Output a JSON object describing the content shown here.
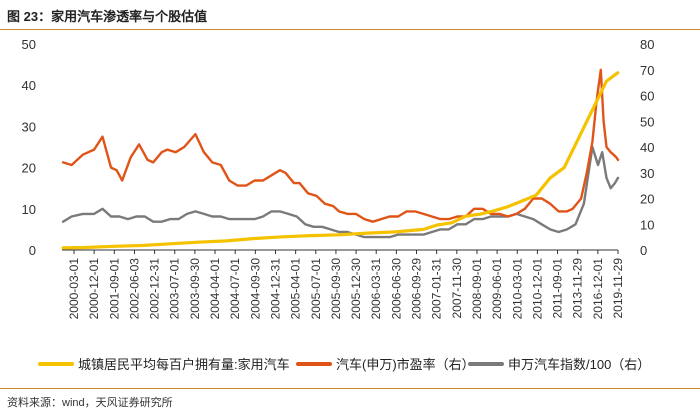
{
  "header": {
    "title": "图 23：家用汽车渗透率与个股估值"
  },
  "source": {
    "text": "资料来源：wind，天风证券研究所"
  },
  "colors": {
    "series1": "#f5c200",
    "series2": "#e05418",
    "series3": "#7a7a7a",
    "axis": "#333333"
  },
  "chart_data": {
    "type": "line",
    "left_axis": {
      "range": [
        0,
        50
      ],
      "ticks": [
        0,
        10,
        20,
        30,
        40,
        50
      ]
    },
    "right_axis": {
      "range": [
        0,
        80
      ],
      "ticks": [
        0,
        10,
        20,
        30,
        40,
        50,
        60,
        70,
        80
      ]
    },
    "x_range": [
      2000.16,
      2019.91
    ],
    "x_ticks": [
      "2000-03-01",
      "2000-12-01",
      "2001-09-01",
      "2002-06-03",
      "2002-12-31",
      "2003-07-01",
      "2003-09-30",
      "2004-04-01",
      "2004-07-01",
      "2004-09-30",
      "2004-12-31",
      "2005-04-01",
      "2005-07-01",
      "2005-09-30",
      "2005-12-30",
      "2006-03-31",
      "2006-06-30",
      "2006-09-29",
      "2007-01-31",
      "2007-11-30",
      "2008-09-01",
      "2009-06-01",
      "2010-03-01",
      "2010-12-01",
      "2011-09-01",
      "2013-11-29",
      "2016-12-01",
      "2019-11-29"
    ],
    "series": [
      {
        "name": "城镇居民平均每百户拥有量:家用汽车",
        "axis": "left",
        "points": [
          [
            2000.2,
            0.5
          ],
          [
            2001.0,
            0.6
          ],
          [
            2002.0,
            0.9
          ],
          [
            2003.0,
            1.1
          ],
          [
            2004.0,
            1.5
          ],
          [
            2005.0,
            1.9
          ],
          [
            2006.0,
            2.2
          ],
          [
            2007.0,
            2.8
          ],
          [
            2008.0,
            3.2
          ],
          [
            2009.0,
            3.5
          ],
          [
            2010.0,
            3.7
          ],
          [
            2011.0,
            4.1
          ],
          [
            2012.0,
            4.4
          ],
          [
            2013.0,
            5.0
          ],
          [
            2013.5,
            6.1
          ],
          [
            2014.0,
            6.6
          ],
          [
            2014.5,
            8.2
          ],
          [
            2015.0,
            8.7
          ],
          [
            2015.5,
            9.5
          ],
          [
            2016.0,
            10.5
          ],
          [
            2016.5,
            11.9
          ],
          [
            2017.0,
            13.3
          ],
          [
            2017.5,
            17.5
          ],
          [
            2018.0,
            20.0
          ],
          [
            2018.5,
            27.0
          ],
          [
            2019.0,
            34.0
          ],
          [
            2019.5,
            41.0
          ],
          [
            2019.9,
            43.0
          ]
        ]
      },
      {
        "name": "汽车(申万)市盈率（右）",
        "axis": "right",
        "points": [
          [
            2000.2,
            34
          ],
          [
            2000.5,
            33
          ],
          [
            2000.9,
            37
          ],
          [
            2001.3,
            39
          ],
          [
            2001.6,
            44
          ],
          [
            2001.9,
            32
          ],
          [
            2002.1,
            31
          ],
          [
            2002.3,
            27
          ],
          [
            2002.6,
            36
          ],
          [
            2002.9,
            41
          ],
          [
            2003.2,
            35
          ],
          [
            2003.4,
            34
          ],
          [
            2003.7,
            38
          ],
          [
            2003.9,
            39
          ],
          [
            2004.2,
            38
          ],
          [
            2004.5,
            40
          ],
          [
            2004.9,
            45
          ],
          [
            2005.2,
            38
          ],
          [
            2005.5,
            34
          ],
          [
            2005.8,
            33
          ],
          [
            2006.1,
            27
          ],
          [
            2006.4,
            25
          ],
          [
            2006.7,
            25
          ],
          [
            2007.0,
            27
          ],
          [
            2007.3,
            27
          ],
          [
            2007.6,
            29
          ],
          [
            2007.9,
            31
          ],
          [
            2008.1,
            30
          ],
          [
            2008.4,
            26
          ],
          [
            2008.6,
            26
          ],
          [
            2008.9,
            22
          ],
          [
            2009.2,
            21
          ],
          [
            2009.5,
            18
          ],
          [
            2009.8,
            17
          ],
          [
            2010.0,
            15
          ],
          [
            2010.3,
            14
          ],
          [
            2010.6,
            14
          ],
          [
            2010.9,
            12
          ],
          [
            2011.2,
            11
          ],
          [
            2011.5,
            12
          ],
          [
            2011.8,
            13
          ],
          [
            2012.1,
            13
          ],
          [
            2012.4,
            15
          ],
          [
            2012.7,
            15
          ],
          [
            2013.0,
            14
          ],
          [
            2013.3,
            13
          ],
          [
            2013.6,
            12
          ],
          [
            2013.9,
            12
          ],
          [
            2014.2,
            13
          ],
          [
            2014.5,
            13
          ],
          [
            2014.8,
            16
          ],
          [
            2015.1,
            16
          ],
          [
            2015.4,
            14
          ],
          [
            2015.7,
            14
          ],
          [
            2016.0,
            13
          ],
          [
            2016.3,
            14
          ],
          [
            2016.6,
            16
          ],
          [
            2016.9,
            20
          ],
          [
            2017.2,
            20
          ],
          [
            2017.5,
            18
          ],
          [
            2017.8,
            15
          ],
          [
            2018.1,
            15
          ],
          [
            2018.3,
            16
          ],
          [
            2018.6,
            20
          ],
          [
            2018.8,
            30
          ],
          [
            2019.0,
            42
          ],
          [
            2019.15,
            58
          ],
          [
            2019.3,
            70
          ],
          [
            2019.4,
            50
          ],
          [
            2019.5,
            40
          ],
          [
            2019.65,
            38
          ],
          [
            2019.75,
            37
          ],
          [
            2019.85,
            36
          ],
          [
            2019.91,
            35
          ]
        ]
      },
      {
        "name": "申万汽车指数/100（右）",
        "axis": "right",
        "points": [
          [
            2000.2,
            11
          ],
          [
            2000.5,
            13
          ],
          [
            2000.9,
            14
          ],
          [
            2001.3,
            14
          ],
          [
            2001.6,
            16
          ],
          [
            2001.9,
            13
          ],
          [
            2002.2,
            13
          ],
          [
            2002.5,
            12
          ],
          [
            2002.8,
            13
          ],
          [
            2003.1,
            13
          ],
          [
            2003.4,
            11
          ],
          [
            2003.7,
            11
          ],
          [
            2004.0,
            12
          ],
          [
            2004.3,
            12
          ],
          [
            2004.6,
            14
          ],
          [
            2004.9,
            15
          ],
          [
            2005.2,
            14
          ],
          [
            2005.5,
            13
          ],
          [
            2005.8,
            13
          ],
          [
            2006.1,
            12
          ],
          [
            2006.4,
            12
          ],
          [
            2006.7,
            12
          ],
          [
            2007.0,
            12
          ],
          [
            2007.3,
            13
          ],
          [
            2007.6,
            15
          ],
          [
            2007.9,
            15
          ],
          [
            2008.2,
            14
          ],
          [
            2008.5,
            13
          ],
          [
            2008.8,
            10
          ],
          [
            2009.1,
            9
          ],
          [
            2009.4,
            9
          ],
          [
            2009.7,
            8
          ],
          [
            2010.0,
            7
          ],
          [
            2010.3,
            7
          ],
          [
            2010.6,
            6
          ],
          [
            2010.9,
            5
          ],
          [
            2011.2,
            5
          ],
          [
            2011.5,
            5
          ],
          [
            2011.8,
            5
          ],
          [
            2012.1,
            6
          ],
          [
            2012.4,
            6
          ],
          [
            2012.7,
            6
          ],
          [
            2013.0,
            6
          ],
          [
            2013.3,
            7
          ],
          [
            2013.6,
            8
          ],
          [
            2013.9,
            8
          ],
          [
            2014.2,
            10
          ],
          [
            2014.5,
            10
          ],
          [
            2014.8,
            12
          ],
          [
            2015.1,
            12
          ],
          [
            2015.4,
            13
          ],
          [
            2015.7,
            13
          ],
          [
            2016.0,
            13
          ],
          [
            2016.3,
            14
          ],
          [
            2016.6,
            13
          ],
          [
            2016.9,
            12
          ],
          [
            2017.2,
            10
          ],
          [
            2017.5,
            8
          ],
          [
            2017.8,
            7
          ],
          [
            2018.1,
            8
          ],
          [
            2018.4,
            10
          ],
          [
            2018.7,
            18
          ],
          [
            2019.0,
            40
          ],
          [
            2019.2,
            33
          ],
          [
            2019.35,
            38
          ],
          [
            2019.5,
            28
          ],
          [
            2019.65,
            24
          ],
          [
            2019.8,
            26
          ],
          [
            2019.91,
            28
          ]
        ]
      }
    ]
  }
}
